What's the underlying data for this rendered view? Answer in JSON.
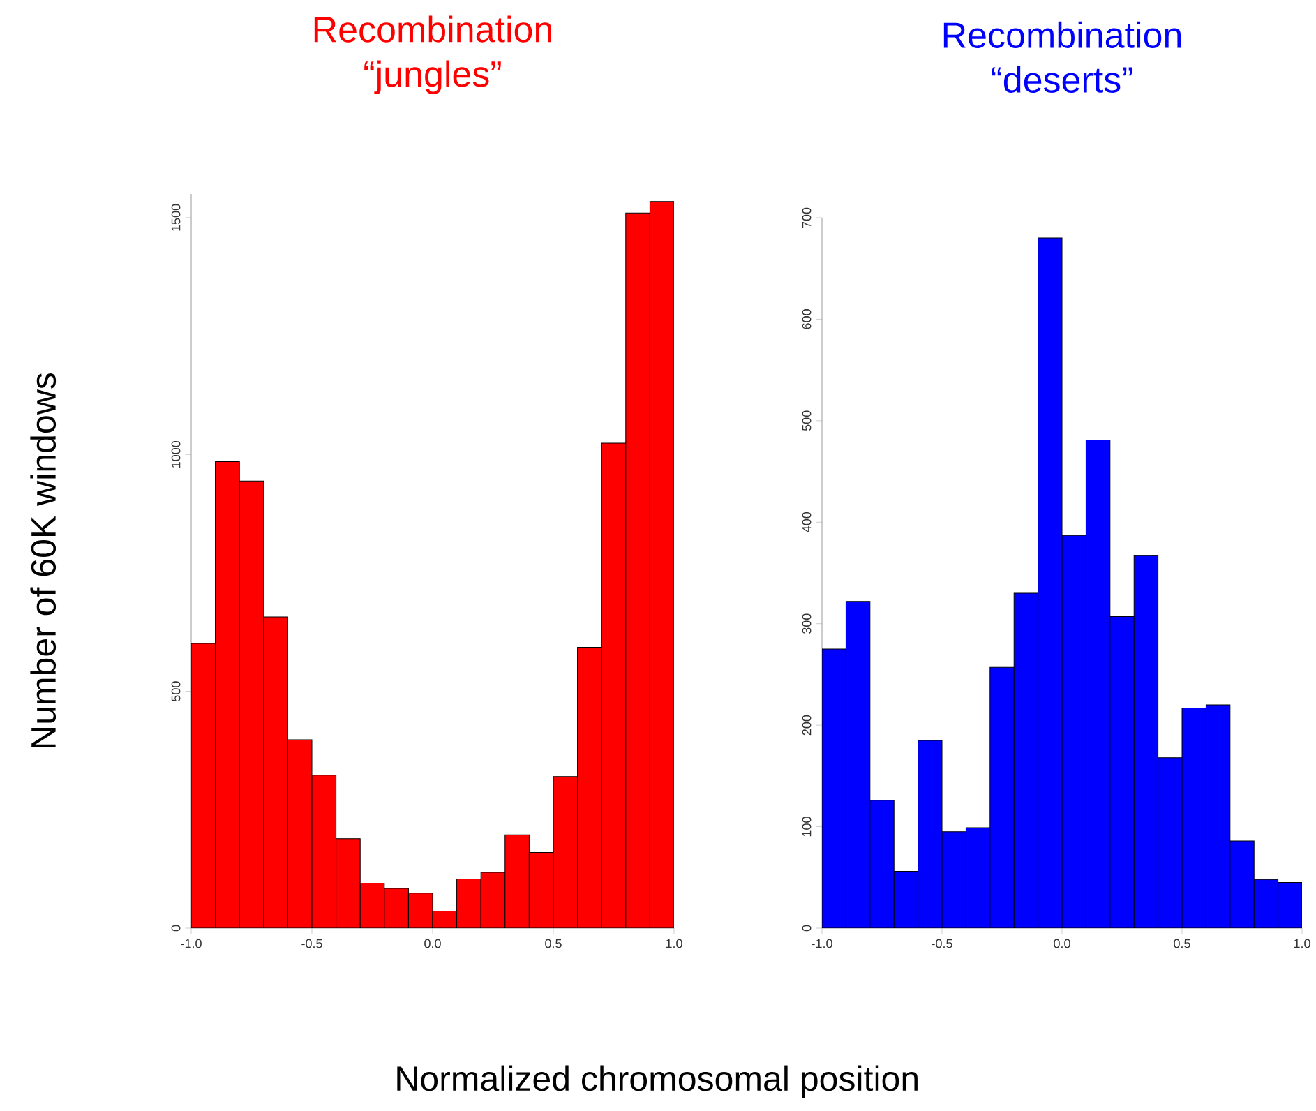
{
  "chart_data": [
    {
      "type": "histogram",
      "title": "Recombination “jungles”",
      "xlabel": "Normalized chromosomal position",
      "ylabel": "Number of 60K windows",
      "color": "#ff0000",
      "bins": [
        -1.0,
        -0.9,
        -0.8,
        -0.7,
        -0.6,
        -0.5,
        -0.4,
        -0.3,
        -0.2,
        -0.1,
        0.0,
        0.1,
        0.2,
        0.3,
        0.4,
        0.5,
        0.6,
        0.7,
        0.8,
        0.9,
        1.0
      ],
      "values": [
        601,
        985,
        944,
        657,
        398,
        323,
        189,
        95,
        84,
        74,
        36,
        104,
        118,
        197,
        160,
        320,
        593,
        1024,
        1510,
        1534
      ],
      "xlim": [
        -1.0,
        1.0
      ],
      "ylim": [
        0,
        1550
      ],
      "xticks": [
        {
          "value": -1.0,
          "label": "-1.0"
        },
        {
          "value": -0.5,
          "label": "-0.5"
        },
        {
          "value": 0.0,
          "label": "0.0"
        },
        {
          "value": 0.5,
          "label": "0.5"
        },
        {
          "value": 1.0,
          "label": "1.0"
        }
      ],
      "yticks": [
        0,
        500,
        1000,
        1500
      ]
    },
    {
      "type": "histogram",
      "title": "Recombination “deserts”",
      "color": "#0000ff",
      "bins": [
        -1.0,
        -0.9,
        -0.8,
        -0.7,
        -0.6,
        -0.5,
        -0.4,
        -0.3,
        -0.2,
        -0.1,
        0.0,
        0.1,
        0.2,
        0.3,
        0.4,
        0.5,
        0.6,
        0.7,
        0.8,
        0.9,
        1.0
      ],
      "values": [
        275,
        322,
        126,
        56,
        185,
        95,
        99,
        257,
        330,
        680,
        387,
        481,
        307,
        367,
        168,
        217,
        220,
        86,
        48,
        45
      ],
      "xlim": [
        -1.0,
        1.0
      ],
      "ylim": [
        0,
        700
      ],
      "xticks": [
        {
          "value": -1.0,
          "label": "-1.0"
        },
        {
          "value": -0.5,
          "label": "-0.5"
        },
        {
          "value": 0.0,
          "label": "0.0"
        },
        {
          "value": 0.5,
          "label": "0.5"
        },
        {
          "value": 1.0,
          "label": "1.0"
        }
      ],
      "yticks": [
        0,
        100,
        200,
        300,
        400,
        500,
        600,
        700
      ]
    }
  ]
}
